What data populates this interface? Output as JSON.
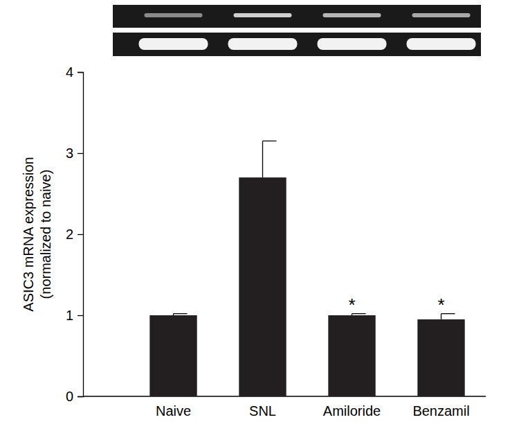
{
  "chart_data": {
    "type": "bar",
    "categories": [
      "Naive",
      "SNL",
      "Amiloride",
      "Benzamil"
    ],
    "values": [
      1.0,
      2.7,
      1.0,
      0.95
    ],
    "errors": [
      0.02,
      0.45,
      0.02,
      0.07
    ],
    "color": "#231f20",
    "ylabel": [
      "ASIC3 mRNA expression",
      "(normalized to naive)"
    ],
    "ylim": [
      0,
      4
    ],
    "yticks": [
      0,
      1,
      2,
      3,
      4
    ],
    "grid": false,
    "annotations": [
      {
        "text": "*",
        "category": "Amiloride"
      },
      {
        "text": "*",
        "category": "Benzamil"
      }
    ]
  }
}
